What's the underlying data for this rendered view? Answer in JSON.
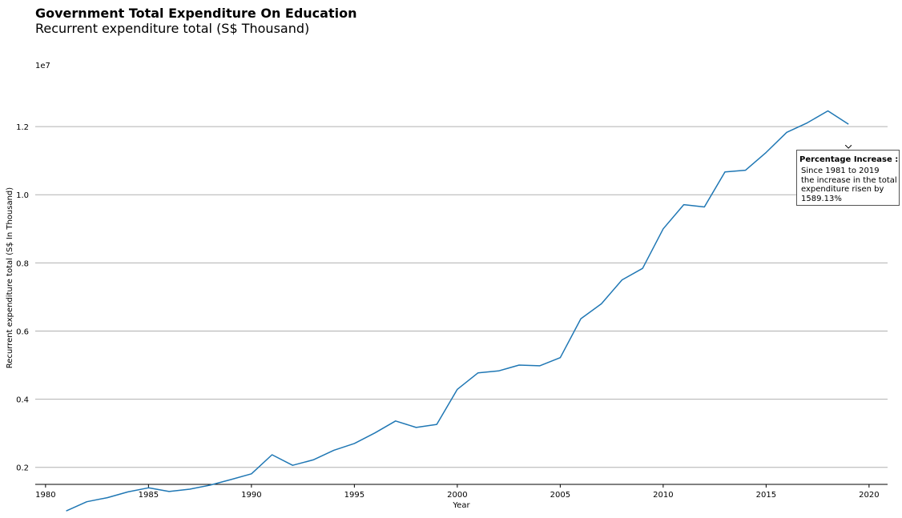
{
  "chart_data": {
    "type": "line",
    "title": "Government Total Expenditure On Education",
    "subtitle": "Recurrent expenditure total (S$ Thousand)",
    "xlabel": "Year",
    "ylabel": "Recurrent expenditure total (S$ In Thousand)",
    "y_scale_label": "1e7",
    "xlim": [
      1979.5,
      2020.9
    ],
    "ylim": [
      0.15,
      1.36
    ],
    "x_ticks": [
      1980,
      1985,
      1990,
      1995,
      2000,
      2005,
      2010,
      2015,
      2020
    ],
    "y_ticks": [
      0.2,
      0.4,
      0.6,
      0.8,
      1.0,
      1.2
    ],
    "y_tick_labels": [
      "0.2",
      "0.4",
      "0.6",
      "0.8",
      "1.0",
      "1.2"
    ],
    "grid": "horizontal",
    "line_color": "#1f77b4",
    "series": [
      {
        "x": [
          1981,
          1982,
          1983,
          1984,
          1985,
          1986,
          1987,
          1988,
          1989,
          1990,
          1991,
          1992,
          1993,
          1994,
          1995,
          1996,
          1997,
          1998,
          1999,
          2000,
          2001,
          2002,
          2003,
          2004,
          2005,
          2006,
          2007,
          2008,
          2009,
          2010,
          2011,
          2012,
          2013,
          2014,
          2015,
          2016,
          2017,
          2018,
          2019
        ],
        "values": [
          0.072,
          0.099,
          0.111,
          0.128,
          0.14,
          0.129,
          0.136,
          0.148,
          0.164,
          0.181,
          0.237,
          0.206,
          0.222,
          0.25,
          0.27,
          0.301,
          0.336,
          0.317,
          0.326,
          0.429,
          0.477,
          0.483,
          0.5,
          0.498,
          0.522,
          0.636,
          0.68,
          0.75,
          0.784,
          0.9,
          0.971,
          0.964,
          1.067,
          1.072,
          1.124,
          1.183,
          1.211,
          1.246,
          1.207
        ]
      }
    ],
    "annotation": {
      "title": "Percentage Increase :",
      "lines": [
        "Since 1981 to 2019",
        "the increase in the total",
        "expenditure risen by",
        "1589.13%"
      ],
      "arrow_target": {
        "x": 2019,
        "y": 1.146
      }
    }
  }
}
